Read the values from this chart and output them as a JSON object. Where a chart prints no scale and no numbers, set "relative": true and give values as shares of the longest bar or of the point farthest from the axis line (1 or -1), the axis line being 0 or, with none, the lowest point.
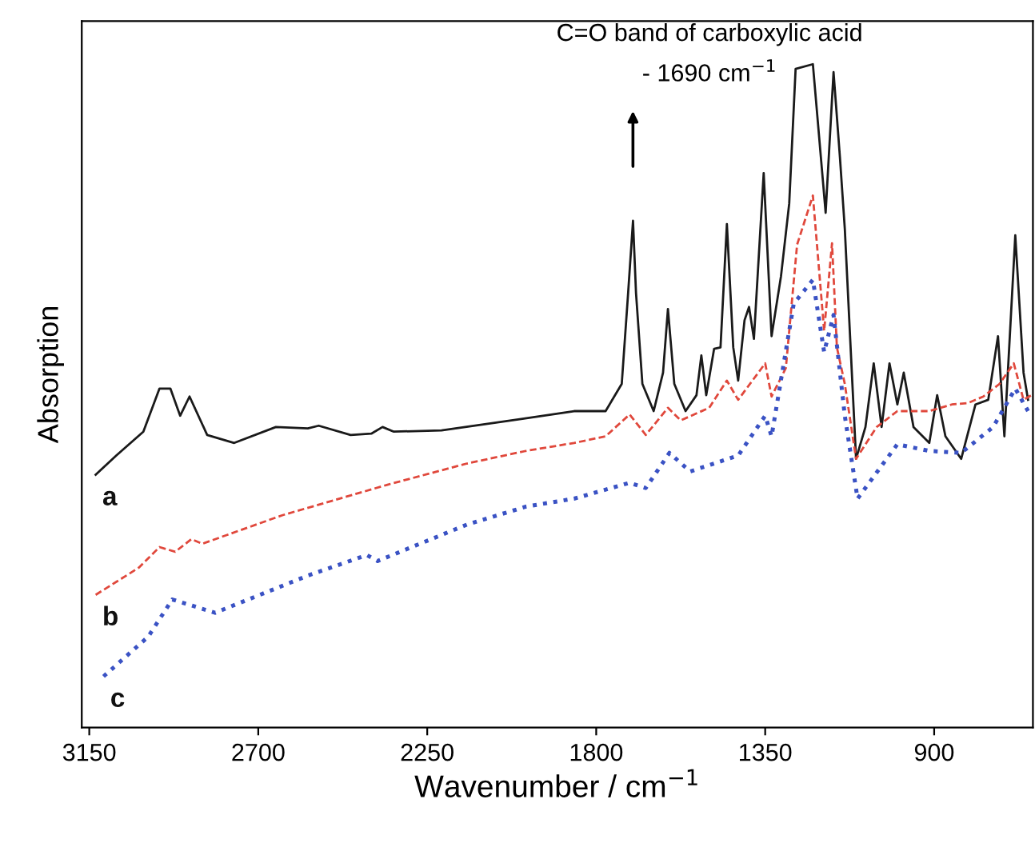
{
  "chart_data": {
    "type": "line",
    "relative": true,
    "xlabel": "Wavenumber / cm$^{−1}$",
    "ylabel": "Absorption",
    "xlim": [
      3170,
      637
    ],
    "xticks": [
      3150,
      2700,
      2250,
      1800,
      1350,
      900
    ],
    "grid": false,
    "legend": false,
    "tick_labels": "x",
    "annotations": [
      "C=O band of carboxylic acid\n- 1690 cm$^{−1}$"
    ],
    "series": [
      {
        "name": "a",
        "color": "#1a1a1a",
        "line_style": "solid",
        "x": [
          3133,
          3078,
          3006,
          2963,
          2934,
          2908,
          2883,
          2836,
          2764,
          2653,
          2568,
          2539,
          2454,
          2399,
          2369,
          2339,
          2212,
          2000,
          1859,
          1775,
          1732,
          1715,
          1702,
          1694,
          1677,
          1647,
          1622,
          1609,
          1592,
          1562,
          1533,
          1520,
          1507,
          1486,
          1469,
          1452,
          1435,
          1422,
          1405,
          1393,
          1380,
          1354,
          1333,
          1308,
          1286,
          1269,
          1223,
          1189,
          1168,
          1151,
          1138,
          1108,
          1083,
          1061,
          1040,
          1019,
          998,
          981,
          955,
          913,
          892,
          870,
          828,
          790,
          756,
          730,
          713,
          684,
          662,
          650
        ],
        "values": [
          0.381,
          0.41,
          0.446,
          0.511,
          0.511,
          0.47,
          0.499,
          0.441,
          0.429,
          0.453,
          0.451,
          0.455,
          0.441,
          0.443,
          0.453,
          0.446,
          0.448,
          0.465,
          0.477,
          0.477,
          0.518,
          0.655,
          0.764,
          0.655,
          0.518,
          0.477,
          0.535,
          0.631,
          0.518,
          0.477,
          0.501,
          0.561,
          0.501,
          0.571,
          0.573,
          0.759,
          0.573,
          0.523,
          0.614,
          0.634,
          0.586,
          0.836,
          0.59,
          0.68,
          0.79,
          0.993,
          1.0,
          0.776,
          0.988,
          0.86,
          0.752,
          0.405,
          0.453,
          0.549,
          0.453,
          0.549,
          0.487,
          0.535,
          0.453,
          0.429,
          0.501,
          0.439,
          0.405,
          0.487,
          0.494,
          0.59,
          0.439,
          0.742,
          0.535,
          0.494
        ]
      },
      {
        "name": "b",
        "color": "#e0483c",
        "line_style": "dashed",
        "x": [
          3133,
          3018,
          2963,
          2921,
          2878,
          2849,
          2636,
          2356,
          2144,
          1987,
          1859,
          1775,
          1711,
          1668,
          1609,
          1575,
          1499,
          1452,
          1422,
          1350,
          1333,
          1295,
          1265,
          1223,
          1193,
          1172,
          1159,
          1138,
          1108,
          1053,
          998,
          913,
          853,
          811,
          769,
          726,
          688,
          662,
          641
        ],
        "values": [
          0.2,
          0.241,
          0.272,
          0.265,
          0.284,
          0.277,
          0.32,
          0.366,
          0.398,
          0.417,
          0.429,
          0.439,
          0.472,
          0.441,
          0.482,
          0.463,
          0.482,
          0.523,
          0.494,
          0.549,
          0.499,
          0.542,
          0.728,
          0.802,
          0.598,
          0.73,
          0.573,
          0.518,
          0.405,
          0.453,
          0.477,
          0.477,
          0.487,
          0.489,
          0.499,
          0.518,
          0.549,
          0.494,
          0.501
        ]
      },
      {
        "name": "c",
        "color": "#3a52c4",
        "line_style": "dotted",
        "x": [
          3112,
          2993,
          2929,
          2815,
          2568,
          2411,
          2382,
          2144,
          1987,
          1859,
          1711,
          1668,
          1605,
          1550,
          1422,
          1350,
          1333,
          1274,
          1223,
          1193,
          1168,
          1138,
          1104,
          998,
          913,
          828,
          743,
          684,
          650
        ],
        "values": [
          0.077,
          0.137,
          0.193,
          0.173,
          0.229,
          0.26,
          0.251,
          0.306,
          0.333,
          0.345,
          0.369,
          0.361,
          0.414,
          0.386,
          0.41,
          0.47,
          0.439,
          0.639,
          0.675,
          0.566,
          0.622,
          0.47,
          0.345,
          0.427,
          0.417,
          0.414,
          0.453,
          0.511,
          0.477
        ]
      }
    ]
  }
}
